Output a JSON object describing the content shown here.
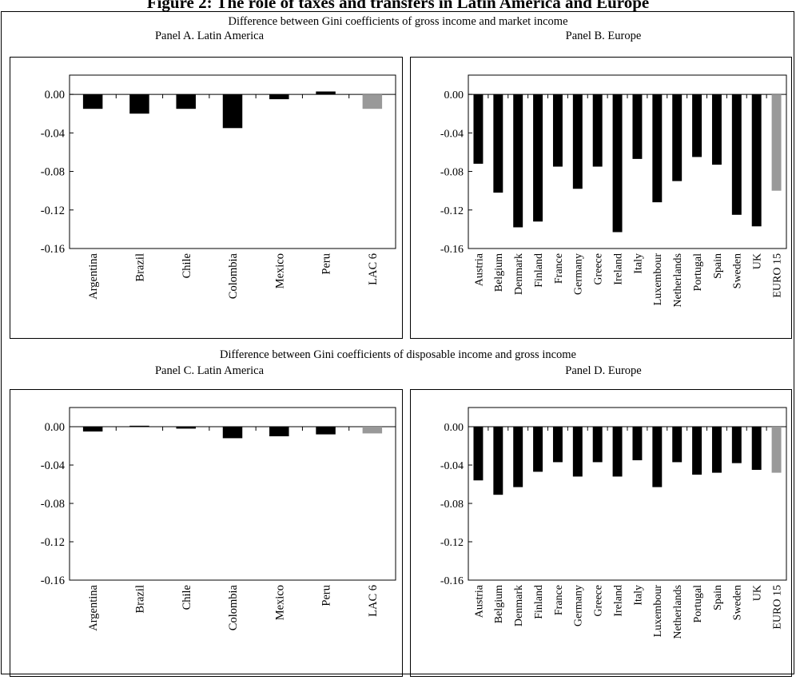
{
  "figure_title": "Figure 2: The role of taxes and transfers in Latin America and Europe",
  "sections": {
    "top": "Difference between Gini coefficients of gross income and market income",
    "bottom": "Difference between Gini coefficients of disposable income and gross income"
  },
  "chart_data": [
    {
      "type": "bar",
      "title": "Panel A. Latin America",
      "categories": [
        "Argentina",
        "Brazil",
        "Chile",
        "Colombia",
        "Mexico",
        "Peru",
        "LAC 6"
      ],
      "values": [
        -0.015,
        -0.02,
        -0.015,
        -0.035,
        -0.005,
        0.003,
        -0.015
      ],
      "highlight": [
        "LAC 6"
      ],
      "yticks": [
        "0.00",
        "-0.04",
        "-0.08",
        "-0.12",
        "-0.16"
      ],
      "ylim": [
        -0.16,
        0.02
      ],
      "colors": {
        "bar": "#000000",
        "aggregate": "#999999"
      }
    },
    {
      "type": "bar",
      "title": "Panel B. Europe",
      "categories": [
        "Austria",
        "Belgium",
        "Denmark",
        "Finland",
        "France",
        "Germany",
        "Greece",
        "Ireland",
        "Italy",
        "Luxembour",
        "Netherlands",
        "Portugal",
        "Spain",
        "Sweden",
        "UK",
        "EURO 15"
      ],
      "values": [
        -0.072,
        -0.102,
        -0.138,
        -0.132,
        -0.075,
        -0.098,
        -0.075,
        -0.143,
        -0.067,
        -0.112,
        -0.09,
        -0.065,
        -0.073,
        -0.125,
        -0.137,
        -0.1
      ],
      "highlight": [
        "EURO 15"
      ],
      "yticks": [
        "0.00",
        "-0.04",
        "-0.08",
        "-0.12",
        "-0.16"
      ],
      "ylim": [
        -0.16,
        0.02
      ],
      "colors": {
        "bar": "#000000",
        "aggregate": "#999999"
      }
    },
    {
      "type": "bar",
      "title": "Panel C. Latin America",
      "categories": [
        "Argentina",
        "Brazil",
        "Chile",
        "Colombia",
        "Mexico",
        "Peru",
        "LAC 6"
      ],
      "values": [
        -0.005,
        0.001,
        -0.002,
        -0.012,
        -0.01,
        -0.008,
        -0.007
      ],
      "highlight": [
        "LAC 6"
      ],
      "yticks": [
        "0.00",
        "-0.04",
        "-0.08",
        "-0.12",
        "-0.16"
      ],
      "ylim": [
        -0.16,
        0.02
      ],
      "colors": {
        "bar": "#000000",
        "aggregate": "#999999"
      }
    },
    {
      "type": "bar",
      "title": "Panel D. Europe",
      "categories": [
        "Austria",
        "Belgium",
        "Denmark",
        "Finland",
        "France",
        "Germany",
        "Greece",
        "Ireland",
        "Italy",
        "Luxembour",
        "Netherlands",
        "Portugal",
        "Spain",
        "Sweden",
        "UK",
        "EURO 15"
      ],
      "values": [
        -0.056,
        -0.071,
        -0.063,
        -0.047,
        -0.037,
        -0.052,
        -0.037,
        -0.052,
        -0.035,
        -0.063,
        -0.037,
        -0.05,
        -0.048,
        -0.038,
        -0.045,
        -0.048
      ],
      "highlight": [
        "EURO 15"
      ],
      "yticks": [
        "0.00",
        "-0.04",
        "-0.08",
        "-0.12",
        "-0.16"
      ],
      "ylim": [
        -0.16,
        0.02
      ],
      "colors": {
        "bar": "#000000",
        "aggregate": "#999999"
      }
    }
  ]
}
